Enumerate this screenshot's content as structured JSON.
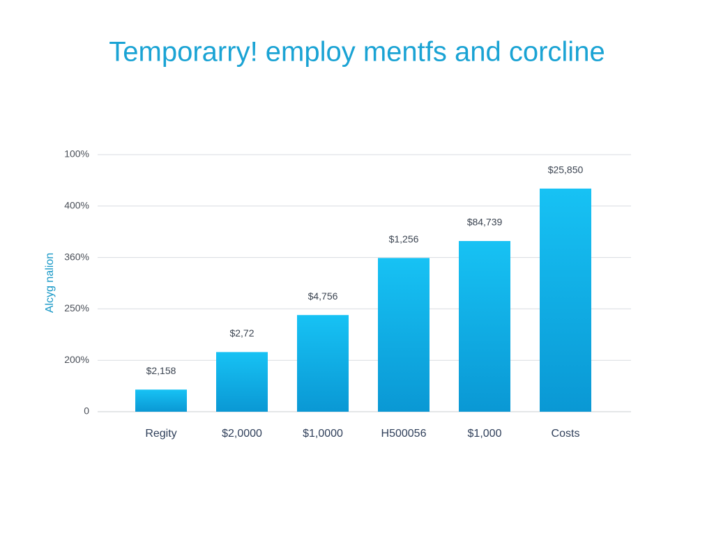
{
  "chart_data": {
    "type": "bar",
    "title": "Temporarry! employ mentfs and corcline",
    "y_label": "Alcyg nalion",
    "categories": [
      "Regity",
      "$2,0000",
      "$1,0000",
      "H500056",
      "$1,000",
      "Costs"
    ],
    "values": [
      0.43,
      1.16,
      1.88,
      2.99,
      3.32,
      4.34
    ],
    "annotations": [
      "$2,158",
      "$2,72",
      "$4,756",
      "$1,256",
      "$84,739",
      "$25,850"
    ],
    "color": "#12b4ea",
    "ylim": [
      0,
      5
    ],
    "yticks": [
      0,
      {
        "value": 1,
        "label": "200%"
      },
      {
        "value": 2,
        "label": "250%"
      },
      {
        "value": 3,
        "label": "360%"
      },
      {
        "value": 4,
        "label": "400%"
      },
      {
        "value": 5,
        "label": "100%"
      }
    ],
    "grid": true
  }
}
